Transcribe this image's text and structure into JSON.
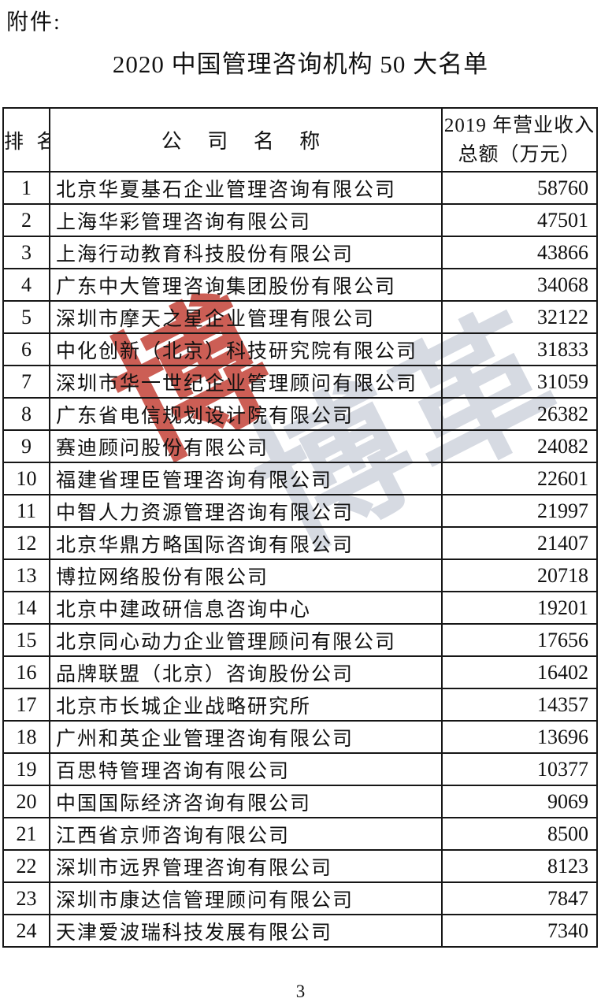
{
  "page": {
    "attachment_label": "附件:",
    "title": "2020 中国管理咨询机构 50 大名单",
    "page_number": "3"
  },
  "watermark": {
    "red_glyph": "博",
    "gray_text": "博革",
    "red_color": "#c6483e",
    "gray_color": "#d6dae2"
  },
  "table": {
    "headers": {
      "rank": "排 名",
      "company": "公 司 名 称",
      "revenue_line1": "2019 年营业收入",
      "revenue_line2": "总额（万元）"
    },
    "rows": [
      {
        "rank": "1",
        "company": "北京华夏基石企业管理咨询有限公司",
        "revenue": "58760"
      },
      {
        "rank": "2",
        "company": "上海华彩管理咨询有限公司",
        "revenue": "47501"
      },
      {
        "rank": "3",
        "company": "上海行动教育科技股份有限公司",
        "revenue": "43866"
      },
      {
        "rank": "4",
        "company": "广东中大管理咨询集团股份有限公司",
        "revenue": "34068"
      },
      {
        "rank": "5",
        "company": "深圳市摩天之星企业管理有限公司",
        "revenue": "32122"
      },
      {
        "rank": "6",
        "company": "中化创新（北京）科技研究院有限公司",
        "revenue": "31833"
      },
      {
        "rank": "7",
        "company": "深圳市华一世纪企业管理顾问有限公司",
        "revenue": "31059"
      },
      {
        "rank": "8",
        "company": "广东省电信规划设计院有限公司",
        "revenue": "26382"
      },
      {
        "rank": "9",
        "company": "赛迪顾问股份有限公司",
        "revenue": "24082"
      },
      {
        "rank": "10",
        "company": "福建省理臣管理咨询有限公司",
        "revenue": "22601"
      },
      {
        "rank": "11",
        "company": "中智人力资源管理咨询有限公司",
        "revenue": "21997"
      },
      {
        "rank": "12",
        "company": "北京华鼎方略国际咨询有限公司",
        "revenue": "21407"
      },
      {
        "rank": "13",
        "company": "博拉网络股份有限公司",
        "revenue": "20718"
      },
      {
        "rank": "14",
        "company": "北京中建政研信息咨询中心",
        "revenue": "19201"
      },
      {
        "rank": "15",
        "company": "北京同心动力企业管理顾问有限公司",
        "revenue": "17656"
      },
      {
        "rank": "16",
        "company": "品牌联盟（北京）咨询股份公司",
        "revenue": "16402"
      },
      {
        "rank": "17",
        "company": "北京市长城企业战略研究所",
        "revenue": "14357"
      },
      {
        "rank": "18",
        "company": "广州和英企业管理咨询有限公司",
        "revenue": "13696"
      },
      {
        "rank": "19",
        "company": "百思特管理咨询有限公司",
        "revenue": "10377"
      },
      {
        "rank": "20",
        "company": "中国国际经济咨询有限公司",
        "revenue": "9069"
      },
      {
        "rank": "21",
        "company": "江西省京师咨询有限公司",
        "revenue": "8500"
      },
      {
        "rank": "22",
        "company": "深圳市远界管理咨询有限公司",
        "revenue": "8123"
      },
      {
        "rank": "23",
        "company": "深圳市康达信管理顾问有限公司",
        "revenue": "7847"
      },
      {
        "rank": "24",
        "company": "天津爱波瑞科技发展有限公司",
        "revenue": "7340"
      }
    ]
  }
}
